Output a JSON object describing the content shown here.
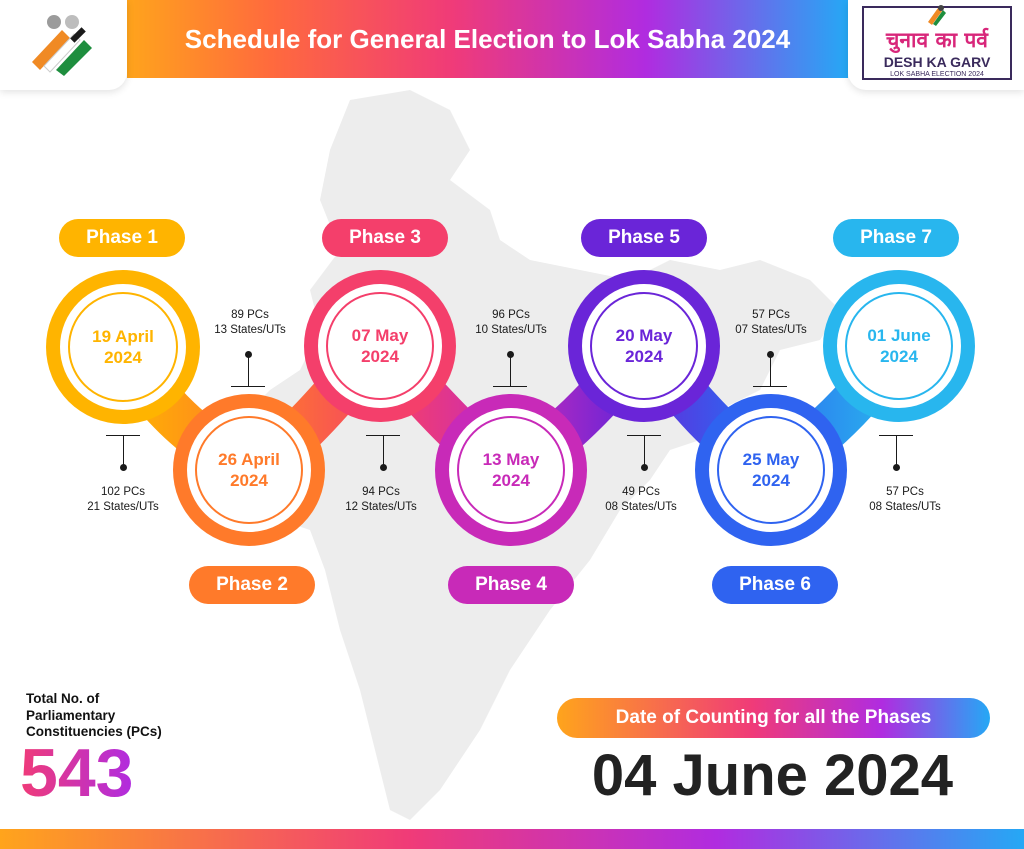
{
  "header": {
    "title": "Schedule for General Election to Lok Sabha 2024"
  },
  "campaign": {
    "hindi": "चुनाव का पर्व",
    "main": "DESH KA GARV",
    "sub": "LOK SABHA ELECTION 2024"
  },
  "phases": [
    {
      "label": "Phase 1",
      "date_line1": "19 April",
      "date_line2": "2024",
      "pcs": "102 PCs",
      "states": "21 States/UTs",
      "color": "#ffb400"
    },
    {
      "label": "Phase 2",
      "date_line1": "26 April",
      "date_line2": "2024",
      "pcs": "89 PCs",
      "states": "13 States/UTs",
      "color": "#ff7a2a"
    },
    {
      "label": "Phase 3",
      "date_line1": "07 May",
      "date_line2": "2024",
      "pcs": "94 PCs",
      "states": "12 States/UTs",
      "color": "#f43f6b"
    },
    {
      "label": "Phase 4",
      "date_line1": "13 May",
      "date_line2": "2024",
      "pcs": "96 PCs",
      "states": "10 States/UTs",
      "color": "#c82ab8"
    },
    {
      "label": "Phase 5",
      "date_line1": "20 May",
      "date_line2": "2024",
      "pcs": "49 PCs",
      "states": "08 States/UTs",
      "color": "#6a25d8"
    },
    {
      "label": "Phase 6",
      "date_line1": "25 May",
      "date_line2": "2024",
      "pcs": "57 PCs",
      "states": "07 States/UTs",
      "color": "#2f63f0"
    },
    {
      "label": "Phase 7",
      "date_line1": "01 June",
      "date_line2": "2024",
      "pcs": "57 PCs",
      "states": "08 States/UTs",
      "color": "#28b6ee"
    }
  ],
  "total": {
    "label_line1": "Total No. of",
    "label_line2": "Parliamentary",
    "label_line3": "Constituencies (PCs)",
    "value": "543"
  },
  "counting": {
    "label": "Date of Counting for all the Phases",
    "date": "04 June 2024"
  }
}
